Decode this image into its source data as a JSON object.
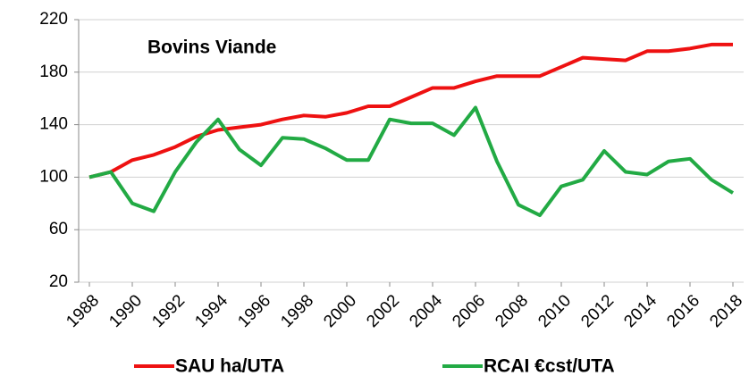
{
  "chart_data": {
    "type": "line",
    "annotation": "Bovins Viande",
    "x": [
      1988,
      1989,
      1990,
      1991,
      1992,
      1993,
      1994,
      1995,
      1996,
      1997,
      1998,
      1999,
      2000,
      2001,
      2002,
      2003,
      2004,
      2005,
      2006,
      2007,
      2008,
      2009,
      2010,
      2011,
      2012,
      2013,
      2014,
      2015,
      2016,
      2017,
      2018
    ],
    "series": [
      {
        "name": "SAU ha/UTA",
        "color": "#ee1111",
        "values": [
          100,
          104,
          113,
          117,
          123,
          131,
          136,
          138,
          140,
          144,
          147,
          146,
          149,
          154,
          154,
          161,
          168,
          168,
          173,
          177,
          177,
          177,
          184,
          191,
          190,
          189,
          196,
          196,
          198,
          201,
          201
        ]
      },
      {
        "name": "RCAI €cst/UTA",
        "color": "#22aa44",
        "values": [
          100,
          104,
          80,
          74,
          104,
          127,
          144,
          121,
          109,
          130,
          129,
          122,
          113,
          113,
          144,
          141,
          141,
          132,
          153,
          112,
          79,
          71,
          93,
          98,
          120,
          104,
          102,
          112,
          114,
          98,
          88
        ]
      }
    ],
    "xlim": [
      1987.5,
      2018.5
    ],
    "xticks": [
      1988,
      1990,
      1992,
      1994,
      1996,
      1998,
      2000,
      2002,
      2004,
      2006,
      2008,
      2010,
      2012,
      2014,
      2016,
      2018
    ],
    "ylim": [
      20,
      220
    ],
    "yticks": [
      20,
      60,
      100,
      140,
      180,
      220
    ],
    "grid": true,
    "legend": "bottom"
  }
}
